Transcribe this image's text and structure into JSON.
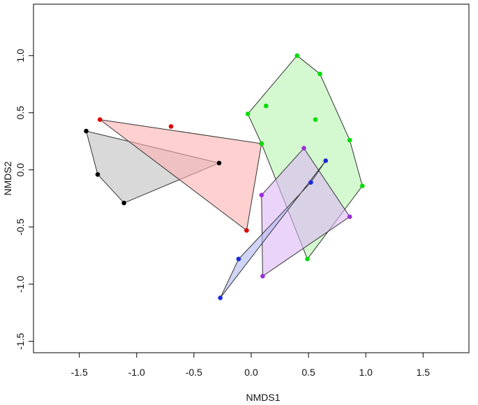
{
  "chart_data": {
    "type": "scatter",
    "xlabel": "NMDS1",
    "ylabel": "NMDS2",
    "xlim": [
      -1.9,
      1.9
    ],
    "ylim": [
      -1.6,
      1.45
    ],
    "x_ticks": [
      -1.5,
      -1.0,
      -0.5,
      0.0,
      0.5,
      1.0,
      1.5
    ],
    "x_tick_labels": [
      "-1.5",
      "-1.0",
      "-0.5",
      "0.0",
      "0.5",
      "1.0",
      "1.5"
    ],
    "y_ticks": [
      -1.5,
      -1.0,
      -0.5,
      0.0,
      0.5,
      1.0
    ],
    "y_tick_labels": [
      "-1.5",
      "-1.0",
      "-0.5",
      "0.0",
      "0.5",
      "1.0"
    ],
    "grid": false,
    "legend": "none",
    "series": [
      {
        "key": "black",
        "color": "#000000",
        "fill": "#bfbfbf",
        "points": [
          [
            -1.44,
            0.34
          ],
          [
            -1.34,
            -0.04
          ],
          [
            -1.11,
            -0.29
          ],
          [
            -0.28,
            0.06
          ]
        ],
        "hull": [
          [
            -1.44,
            0.34
          ],
          [
            -1.34,
            -0.04
          ],
          [
            -1.11,
            -0.29
          ],
          [
            -0.28,
            0.06
          ]
        ]
      },
      {
        "key": "red",
        "color": "#e00000",
        "fill": "#ffb0b0",
        "points": [
          [
            -1.32,
            0.44
          ],
          [
            -0.7,
            0.38
          ],
          [
            0.09,
            0.23
          ],
          [
            -0.04,
            -0.53
          ]
        ],
        "hull": [
          [
            -1.32,
            0.44
          ],
          [
            0.09,
            0.23
          ],
          [
            -0.04,
            -0.53
          ]
        ]
      },
      {
        "key": "green",
        "color": "#00dd00",
        "fill": "#b8f5b0",
        "points": [
          [
            -0.03,
            0.49
          ],
          [
            0.13,
            0.56
          ],
          [
            0.4,
            1.0
          ],
          [
            0.6,
            0.84
          ],
          [
            0.56,
            0.44
          ],
          [
            0.86,
            0.26
          ],
          [
            0.97,
            -0.14
          ],
          [
            0.49,
            -0.78
          ],
          [
            0.09,
            0.23
          ]
        ],
        "hull": [
          [
            -0.03,
            0.49
          ],
          [
            0.4,
            1.0
          ],
          [
            0.6,
            0.84
          ],
          [
            0.86,
            0.26
          ],
          [
            0.97,
            -0.14
          ],
          [
            0.49,
            -0.78
          ],
          [
            0.09,
            0.23
          ]
        ]
      },
      {
        "key": "purple",
        "color": "#9a30d8",
        "fill": "#dcb8f5",
        "points": [
          [
            0.46,
            0.19
          ],
          [
            0.09,
            -0.22
          ],
          [
            0.86,
            -0.41
          ],
          [
            0.1,
            -0.93
          ]
        ],
        "hull": [
          [
            0.46,
            0.19
          ],
          [
            0.86,
            -0.41
          ],
          [
            0.1,
            -0.93
          ],
          [
            0.09,
            -0.22
          ]
        ]
      },
      {
        "key": "blue",
        "color": "#1a2bdb",
        "fill": "#b0b8f0",
        "points": [
          [
            0.65,
            0.08
          ],
          [
            0.52,
            -0.11
          ],
          [
            -0.11,
            -0.78
          ],
          [
            -0.27,
            -1.12
          ]
        ],
        "hull": [
          [
            0.65,
            0.08
          ],
          [
            0.52,
            -0.11
          ],
          [
            -0.11,
            -0.78
          ],
          [
            -0.27,
            -1.12
          ]
        ]
      }
    ]
  }
}
